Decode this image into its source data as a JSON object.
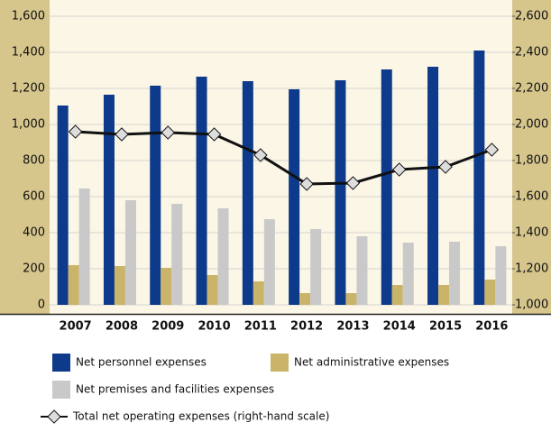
{
  "chart_data": {
    "type": "bar",
    "categories": [
      "2007",
      "2008",
      "2009",
      "2010",
      "2011",
      "2012",
      "2013",
      "2014",
      "2015",
      "2016"
    ],
    "series": [
      {
        "name": "Net personnel expenses",
        "color": "#0d3a8a",
        "values": [
          1105,
          1165,
          1215,
          1265,
          1240,
          1195,
          1245,
          1305,
          1320,
          1410
        ]
      },
      {
        "name": "Net administrative expenses",
        "color": "#c9b46a",
        "values": [
          220,
          215,
          205,
          165,
          130,
          65,
          65,
          110,
          110,
          140
        ]
      },
      {
        "name": "Net premises and facilities expenses",
        "color": "#c9c9c9",
        "values": [
          645,
          580,
          560,
          535,
          475,
          420,
          380,
          345,
          350,
          325
        ]
      },
      {
        "name": "Total net operating expenses (right-hand scale)",
        "color": "#111111",
        "type": "line",
        "axis": "y2",
        "values": [
          1960,
          1945,
          1955,
          1945,
          1830,
          1670,
          1675,
          1750,
          1765,
          1860
        ]
      }
    ],
    "ylim": [
      0,
      1600
    ],
    "yticks": [
      0,
      200,
      400,
      600,
      800,
      {
        "value": 1000,
        "label": "1,000"
      },
      {
        "value": 1200,
        "label": "1,200"
      },
      {
        "value": 1400,
        "label": "1,400"
      },
      {
        "value": 1600,
        "label": "1,600"
      }
    ],
    "y2lim": [
      1000,
      2600
    ],
    "y2ticks": [
      {
        "value": 1000,
        "label": "1,000"
      },
      {
        "value": 1200,
        "label": "1,200"
      },
      {
        "value": 1400,
        "label": "1,400"
      },
      {
        "value": 1600,
        "label": "1,600"
      },
      {
        "value": 1800,
        "label": "1,800"
      },
      {
        "value": 2000,
        "label": "2,000"
      },
      {
        "value": 2200,
        "label": "2,200"
      },
      {
        "value": 2400,
        "label": "2,400"
      },
      {
        "value": 2600,
        "label": "2,600"
      }
    ],
    "grid": true
  }
}
